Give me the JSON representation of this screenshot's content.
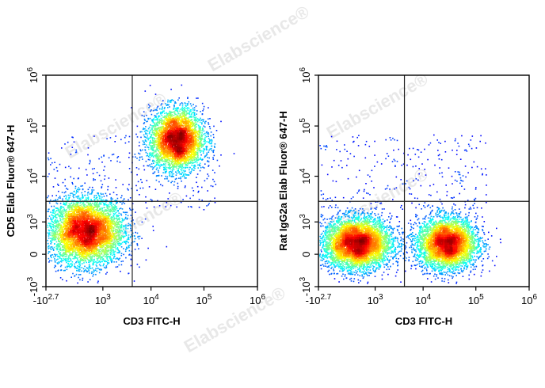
{
  "watermark": "Elabscience®",
  "chart_data": [
    {
      "type": "scatter",
      "subtype": "flow-cytometry-density-dot-plot",
      "title": "",
      "xlabel": "CD3 FITC-H",
      "ylabel": "CD5 Elab Fluor® 647-H",
      "x_axis": {
        "scale": "biexponential",
        "ticks": [
          {
            "value": -500,
            "base": "-10",
            "exp": "2.7"
          },
          {
            "value": 1000,
            "base": "10",
            "exp": "3"
          },
          {
            "value": 10000,
            "base": "10",
            "exp": "4"
          },
          {
            "value": 100000,
            "base": "10",
            "exp": "5"
          },
          {
            "value": 1000000,
            "base": "10",
            "exp": "6"
          }
        ]
      },
      "y_axis": {
        "scale": "biexponential",
        "ticks": [
          {
            "value": -1000,
            "base": "-10",
            "exp": "3"
          },
          {
            "value": 0,
            "base": "0",
            "exp": ""
          },
          {
            "value": 1000,
            "base": "10",
            "exp": "3"
          },
          {
            "value": 10000,
            "base": "10",
            "exp": "4"
          },
          {
            "value": 100000,
            "base": "10",
            "exp": "5"
          },
          {
            "value": 1000000,
            "base": "10",
            "exp": "6"
          }
        ]
      },
      "quadrant_gate": {
        "x": 4300,
        "y": 3000
      },
      "populations": [
        {
          "x_center": 320,
          "y_center": 550,
          "x_spread": 0.35,
          "y_spread": 0.32,
          "relative_size": 1.0
        },
        {
          "x_center": 30000,
          "y_center": 55000,
          "x_spread": 0.25,
          "y_spread": 0.3,
          "relative_size": 0.75
        }
      ],
      "grid": false
    },
    {
      "type": "scatter",
      "subtype": "flow-cytometry-density-dot-plot",
      "title": "",
      "xlabel": "CD3 FITC-H",
      "ylabel": "Rat IgG2a Elab Fluor® 647-H",
      "x_axis": {
        "scale": "biexponential",
        "ticks": [
          {
            "value": -500,
            "base": "-10",
            "exp": "2.7"
          },
          {
            "value": 1000,
            "base": "10",
            "exp": "3"
          },
          {
            "value": 10000,
            "base": "10",
            "exp": "4"
          },
          {
            "value": 100000,
            "base": "10",
            "exp": "5"
          },
          {
            "value": 1000000,
            "base": "10",
            "exp": "6"
          }
        ]
      },
      "y_axis": {
        "scale": "biexponential",
        "ticks": [
          {
            "value": -1000,
            "base": "-10",
            "exp": "3"
          },
          {
            "value": 0,
            "base": "0",
            "exp": ""
          },
          {
            "value": 1000,
            "base": "10",
            "exp": "3"
          },
          {
            "value": 10000,
            "base": "10",
            "exp": "4"
          },
          {
            "value": 100000,
            "base": "10",
            "exp": "5"
          },
          {
            "value": 1000000,
            "base": "10",
            "exp": "6"
          }
        ]
      },
      "quadrant_gate": {
        "x": 4300,
        "y": 3000
      },
      "populations": [
        {
          "x_center": 280,
          "y_center": 200,
          "x_spread": 0.32,
          "y_spread": 0.25,
          "relative_size": 1.0
        },
        {
          "x_center": 28000,
          "y_center": 200,
          "x_spread": 0.28,
          "y_spread": 0.25,
          "relative_size": 0.85
        }
      ],
      "grid": false
    }
  ]
}
